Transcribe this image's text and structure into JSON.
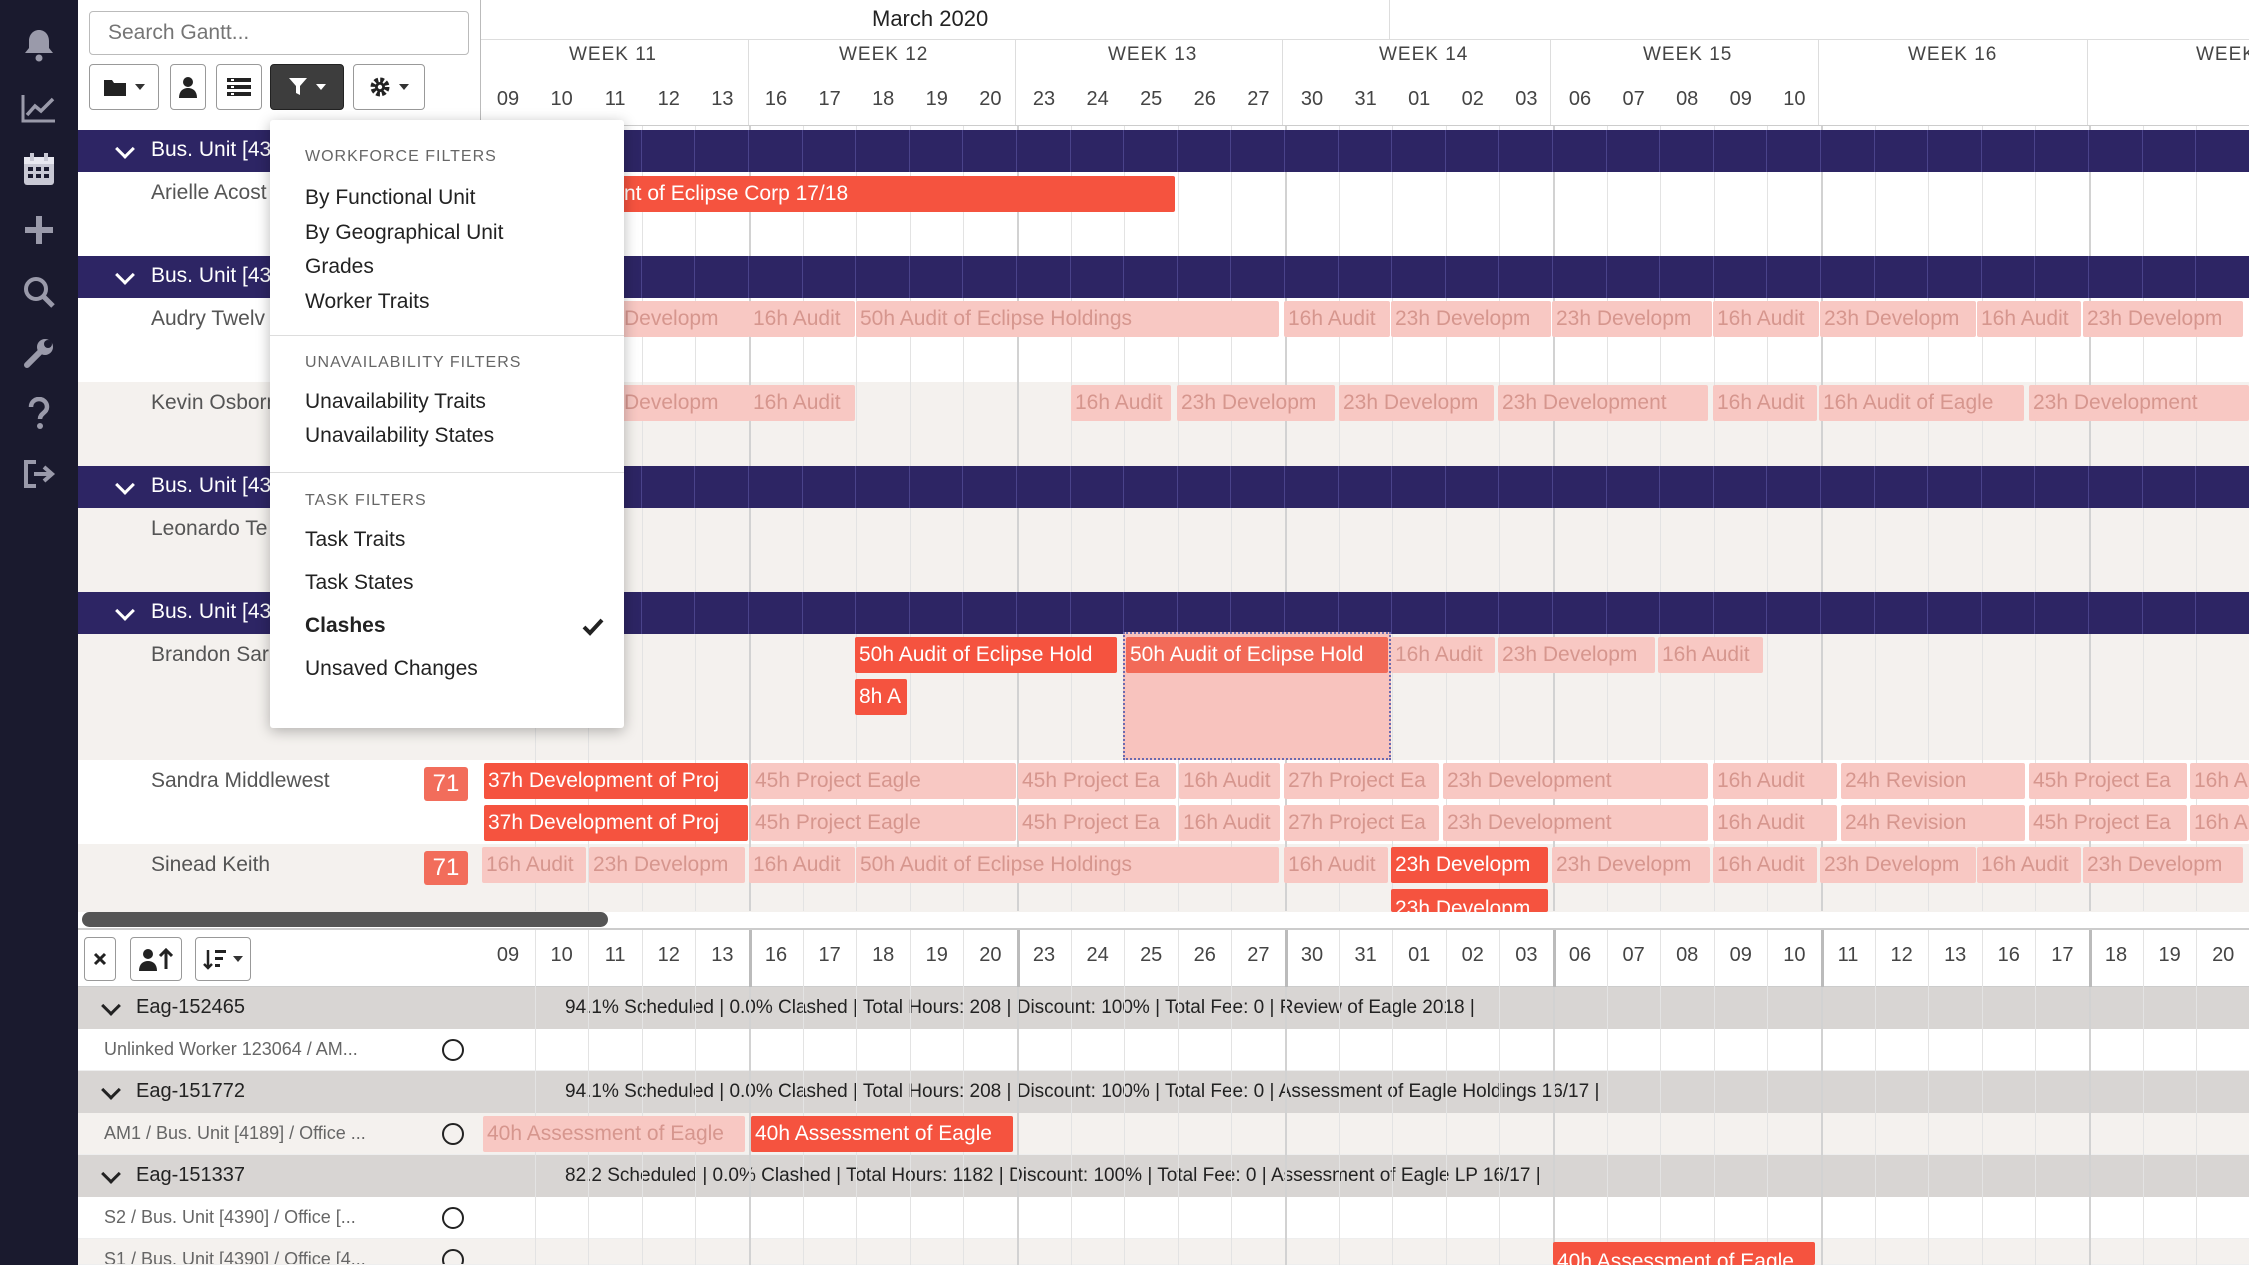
{
  "search": {
    "placeholder": "Search Gantt..."
  },
  "nav_icons": [
    "bell-icon",
    "chart-line-icon",
    "calendar-icon",
    "plus-icon",
    "search-icon",
    "wrench-icon",
    "question-icon",
    "sign-out-icon"
  ],
  "header": {
    "month": "March 2020",
    "weeks": [
      {
        "label": "WEEK 11"
      },
      {
        "label": "WEEK 12"
      },
      {
        "label": "WEEK 13"
      },
      {
        "label": "WEEK 14"
      },
      {
        "label": "WEEK 15"
      },
      {
        "label": "WEEK 16"
      },
      {
        "label": "WEEK"
      }
    ],
    "days": [
      "09",
      "10",
      "11",
      "12",
      "13",
      "16",
      "17",
      "18",
      "19",
      "20",
      "23",
      "24",
      "25",
      "26",
      "27",
      "30",
      "31",
      "01",
      "02",
      "03",
      "06",
      "07",
      "08",
      "09",
      "10"
    ]
  },
  "filter_menu": {
    "workforce_heading": "WORKFORCE FILTERS",
    "workforce": [
      "By Functional Unit",
      "By Geographical Unit",
      "Grades",
      "Worker Traits"
    ],
    "unavailability_heading": "UNAVAILABILITY FILTERS",
    "unavailability": [
      "Unavailability Traits",
      "Unavailability States"
    ],
    "task_heading": "TASK FILTERS",
    "task": [
      "Task Traits",
      "Task States",
      "Clashes",
      "Unsaved Changes"
    ]
  },
  "rows": {
    "bu1": "Bus. Unit [43",
    "w1": "Arielle Acost",
    "bu2": "Bus. Unit [43",
    "w2": "Audry Twelv",
    "w3": "Kevin Osborn",
    "bu3": "Bus. Unit [43",
    "w4": "Leonardo Te",
    "bu4": "Bus. Unit [43",
    "w5": "Brandon Sar",
    "w6": "Sandra Middlewest",
    "w6_badge": "71",
    "w7": "Sinead Keith",
    "w7_badge": "71"
  },
  "tasks": {
    "a1": "nt of Eclipse Corp 17/18",
    "b1": "Developm",
    "b2": "16h Audit",
    "b3": "50h Audit of Eclipse Holdings",
    "b4": "16h Audit",
    "b5": "23h Developm",
    "b6": "23h Developm",
    "b7": "16h Audit",
    "b8": "23h Developm",
    "b9": "16h Audit",
    "b10": "23h Developm",
    "c1": "Developm",
    "c2": "16h Audit",
    "c3": "16h Audit",
    "c4": "23h Developm",
    "c5": "23h Developm",
    "c6": "23h Development",
    "c7": "16h Audit",
    "c8": "16h Audit of Eagle",
    "c9": "23h Development",
    "d1": "50h Audit of Eclipse Hold",
    "d2": "50h Audit of Eclipse Hold",
    "d3": "16h Audit",
    "d4": "23h Developm",
    "d5": "16h Audit",
    "d6": "8h A",
    "e1": "37h Development of Proj",
    "e2": "45h Project Eagle",
    "e3": "45h Project Ea",
    "e4": "16h Audit",
    "e5": "27h Project Ea",
    "e6": "23h Development",
    "e7": "16h Audit",
    "e8": "24h Revision",
    "e9": "45h Project Ea",
    "e10": "16h A",
    "f1": "37h Development of Proj",
    "f2": "45h Project Eagle",
    "f3": "45h Project Ea",
    "f4": "16h Audit",
    "f5": "27h Project Ea",
    "f6": "23h Development",
    "f7": "16h Audit",
    "f8": "24h Revision",
    "f9": "45h Project Ea",
    "f10": "16h A",
    "g1": "16h Audit",
    "g2": "23h Developm",
    "g3": "16h Audit",
    "g4": "50h Audit of Eclipse Holdings",
    "g5": "16h Audit",
    "g6": "23h Developm",
    "g7": "23h Developm",
    "g8": "16h Audit",
    "g9": "23h Developm",
    "g10": "16h Audit",
    "g11": "23h Developm",
    "g12": "23h Developm"
  },
  "bottom": {
    "days": [
      "09",
      "10",
      "11",
      "12",
      "13",
      "16",
      "17",
      "18",
      "19",
      "20",
      "23",
      "24",
      "25",
      "26",
      "27",
      "30",
      "31",
      "01",
      "02",
      "03",
      "06",
      "07",
      "08",
      "09",
      "10",
      "11",
      "12",
      "13",
      "16",
      "17",
      "18",
      "19",
      "20"
    ],
    "groups": [
      {
        "id": "Eag-152465",
        "summary": "94.1% Scheduled | 0.0% Clashed | Total Hours: 208 | Discount: 100% | Total Fee: 0 | Review of Eagle 2018 |",
        "worker": "Unlinked Worker 123064 / AM..."
      },
      {
        "id": "Eag-151772",
        "summary": "94.1% Scheduled | 0.0% Clashed | Total Hours: 208 | Discount: 100% | Total Fee: 0 | Assessment of Eagle Holdings 16/17 |",
        "worker": "AM1 / Bus. Unit [4189] / Office ..."
      },
      {
        "id": "Eag-151337",
        "summary": "82.2 Scheduled | 0.0% Clashed | Total Hours: 1182 | Discount: 100% | Total Fee: 0 | Assessment of Eagle LP 16/17 |",
        "worker": "S2 / Bus. Unit [4390] / Office [..."
      }
    ],
    "extra_worker": "S1 / Bus. Unit [4390] / Office [4...",
    "tasks": {
      "t1": "40h Assessment of Eagle",
      "t2": "40h Assessment of Eagle",
      "t3": "40h Assessment of Eagle"
    }
  }
}
